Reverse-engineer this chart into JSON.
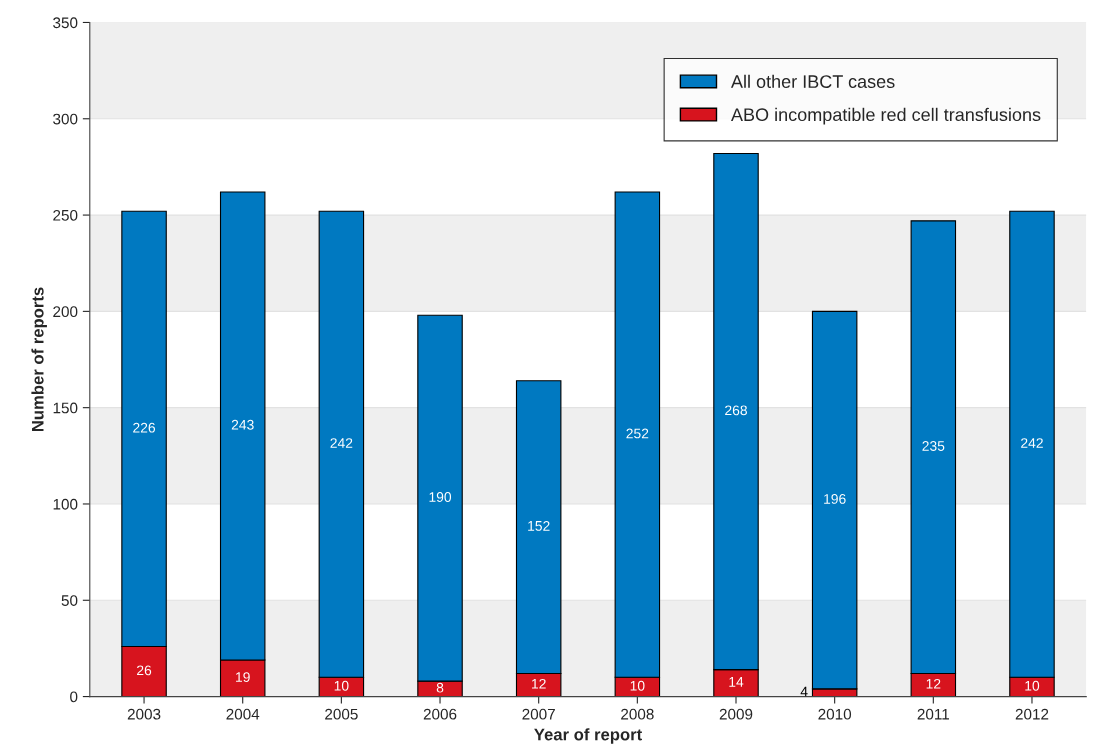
{
  "chart_data": {
    "type": "bar",
    "stacked": true,
    "xlabel": "Year of report",
    "ylabel": "Number of reports",
    "categories": [
      "2003",
      "2004",
      "2005",
      "2006",
      "2007",
      "2008",
      "2009",
      "2010",
      "2011",
      "2012"
    ],
    "series": [
      {
        "name": "ABO incompatible red cell transfusions",
        "color": "#d7141e",
        "values": [
          26,
          19,
          10,
          8,
          12,
          10,
          14,
          4,
          12,
          10
        ]
      },
      {
        "name": "All other IBCT cases",
        "color": "#0079c1",
        "values": [
          226,
          243,
          242,
          190,
          152,
          252,
          268,
          196,
          235,
          242
        ]
      }
    ],
    "ylim": [
      0,
      350
    ],
    "yticks": [
      0,
      50,
      100,
      150,
      200,
      250,
      300,
      350
    ],
    "grid": "y",
    "legend": "top right",
    "data_labels": true
  }
}
